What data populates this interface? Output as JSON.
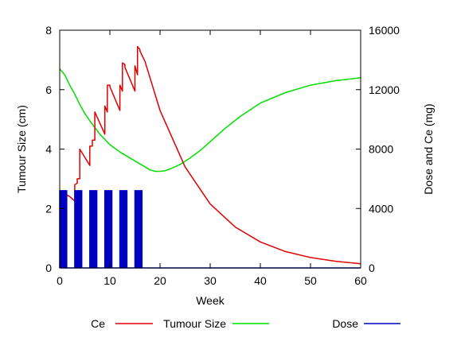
{
  "chart_data": {
    "type": "line",
    "xlabel": "Week",
    "ylabel_left": "Tumour Size (cm)",
    "ylabel_right": "Dose and Ce (mg)",
    "xlim": [
      0,
      60
    ],
    "ylim_left": [
      0,
      8
    ],
    "ylim_right": [
      0,
      16000
    ],
    "x_ticks": [
      0,
      10,
      20,
      30,
      40,
      50,
      60
    ],
    "y_ticks_left": [
      0,
      2,
      4,
      6,
      8
    ],
    "y_ticks_right": [
      0,
      4000,
      8000,
      12000,
      16000
    ],
    "grid": false,
    "legend_position": "bottom",
    "colors": {
      "ce": "#e00000",
      "tumour": "#00e000",
      "dose": "#0000c0"
    },
    "series": [
      {
        "name": "Ce",
        "axis": "right",
        "x": [
          0,
          0.5,
          0.5,
          1,
          1,
          2,
          3,
          3,
          3.5,
          3.5,
          4,
          4,
          6,
          6,
          6.5,
          6.5,
          7,
          7,
          9,
          9,
          9.5,
          9.5,
          10,
          10,
          12,
          12,
          12.5,
          12.5,
          13,
          13,
          15,
          15,
          15.5,
          15.5,
          16,
          16,
          17,
          20,
          25,
          30,
          35,
          40,
          45,
          50,
          55,
          60
        ],
        "y": [
          0,
          2600,
          2600,
          4600,
          5000,
          4800,
          4500,
          5600,
          5700,
          6000,
          6000,
          8000,
          6900,
          8200,
          8200,
          8600,
          8600,
          10500,
          9000,
          10900,
          10500,
          12300,
          12300,
          12200,
          10600,
          12300,
          11900,
          13800,
          13700,
          13500,
          11900,
          13600,
          13000,
          14900,
          14700,
          14600,
          13900,
          10600,
          6800,
          4300,
          2750,
          1750,
          1100,
          700,
          450,
          280
        ]
      },
      {
        "name": "Tumour Size",
        "axis": "left",
        "x": [
          0,
          1,
          2,
          3,
          4,
          5,
          6,
          8,
          10,
          12,
          14,
          16,
          18,
          19,
          20,
          21,
          22,
          24,
          26,
          28,
          30,
          33,
          36,
          40,
          45,
          50,
          55,
          60
        ],
        "y": [
          6.7,
          6.5,
          6.15,
          5.85,
          5.5,
          5.2,
          4.95,
          4.5,
          4.15,
          3.9,
          3.7,
          3.5,
          3.3,
          3.25,
          3.25,
          3.27,
          3.33,
          3.48,
          3.7,
          3.95,
          4.25,
          4.7,
          5.1,
          5.55,
          5.9,
          6.15,
          6.3,
          6.4
        ]
      },
      {
        "name": "Dose",
        "axis": "right",
        "pulse_height": 5200,
        "pulses": [
          [
            0,
            0.2
          ],
          [
            0.4,
            0.6
          ],
          [
            0.8,
            1.0
          ],
          [
            1.2,
            1.4
          ],
          [
            3,
            3.2
          ],
          [
            3.4,
            3.6
          ],
          [
            3.8,
            4.0
          ],
          [
            4.2,
            4.4
          ],
          [
            6,
            6.2
          ],
          [
            6.4,
            6.6
          ],
          [
            6.8,
            7.0
          ],
          [
            7.2,
            7.4
          ],
          [
            9,
            9.2
          ],
          [
            9.4,
            9.6
          ],
          [
            9.8,
            10.0
          ],
          [
            10.2,
            10.4
          ],
          [
            12,
            12.2
          ],
          [
            12.4,
            12.6
          ],
          [
            12.8,
            13.0
          ],
          [
            13.2,
            13.4
          ],
          [
            15,
            15.2
          ],
          [
            15.4,
            15.6
          ],
          [
            15.8,
            16.0
          ],
          [
            16.2,
            16.4
          ]
        ],
        "x_end": 60
      }
    ]
  }
}
